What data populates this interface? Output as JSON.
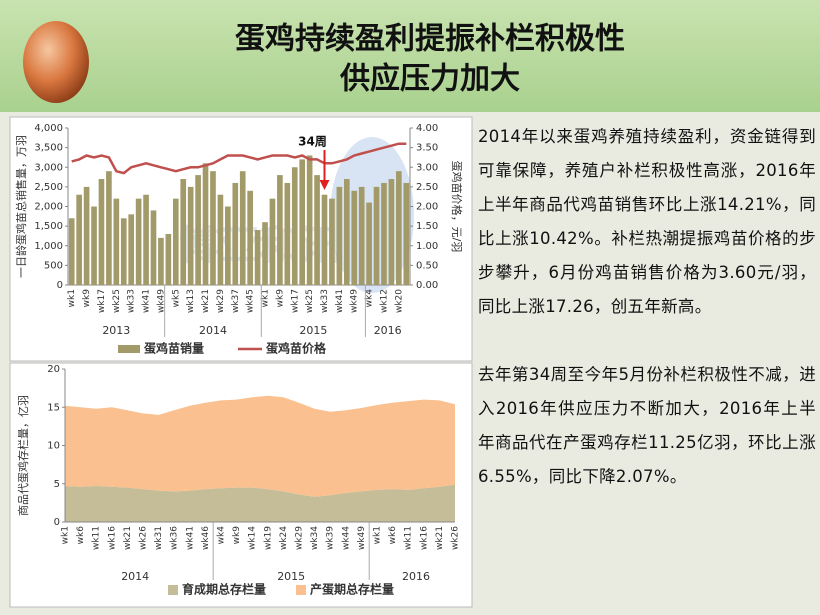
{
  "header": {
    "title_lines": [
      "蛋鸡持续盈利提振补栏积极性",
      "供应压力加大"
    ]
  },
  "text": {
    "paragraphs": [
      "2014年以来蛋鸡养殖持续盈利，资金链得到可靠保障，养殖户补栏积极性高涨，2016年上半年商品代鸡苗销售环比上涨14.21%，同比上涨10.42%。补栏热潮提振鸡苗价格的步步攀升，6月份鸡苗销售价格为3.60元/羽，同比上涨17.26，创五年新高。",
      "去年第34周至今年5月份补栏积极性不减，进入2016年供应压力不断加大，2016年上半年商品代在产蛋鸡存栏11.25亿羽，环比上涨6.55%，同比下降2.07%。"
    ]
  },
  "chart_data": [
    {
      "type": "combo",
      "y_label": "一日龄蛋鸡苗总销售量，万羽",
      "y2_label": "蛋鸡苗价格，元/羽",
      "watermark": "博亚和讯",
      "annotations": [
        {
          "text": "34周"
        }
      ],
      "groups": [
        "2013",
        "2014",
        "2015",
        "2016"
      ],
      "categories": [
        "wk1",
        null,
        "wk9",
        null,
        "wk17",
        null,
        "wk25",
        null,
        "wk33",
        null,
        "wk41",
        null,
        "wk49",
        null,
        "wk5",
        null,
        "wk13",
        null,
        "wk21",
        null,
        "wk29",
        null,
        "wk37",
        null,
        "wk45",
        null,
        "wk1",
        null,
        "wk9",
        null,
        "wk17",
        null,
        "wk25",
        null,
        "wk33",
        null,
        "wk41",
        null,
        "wk49",
        null,
        "wk4",
        null,
        "wk12",
        null,
        "wk20",
        null
      ],
      "series": [
        {
          "name": "蛋鸡苗销量",
          "type": "bar",
          "color": "#a39a6a",
          "values": [
            1700,
            2300,
            2500,
            2000,
            2700,
            2900,
            2200,
            1700,
            1800,
            2200,
            2300,
            1900,
            1200,
            1300,
            2200,
            2700,
            2500,
            2800,
            3100,
            2900,
            2300,
            2000,
            2600,
            2900,
            2400,
            1400,
            1600,
            2200,
            2800,
            2600,
            3000,
            3200,
            3300,
            2800,
            2300,
            2200,
            2500,
            2700,
            2400,
            2500,
            2100,
            2500,
            2600,
            2700,
            2900,
            2600
          ]
        },
        {
          "name": "蛋鸡苗价格",
          "type": "line",
          "axis": "y2",
          "color": "#c0504d",
          "values": [
            3.15,
            3.2,
            3.3,
            3.25,
            3.3,
            3.25,
            2.9,
            2.85,
            3.0,
            3.05,
            3.1,
            3.05,
            3.0,
            2.95,
            2.9,
            2.95,
            3.0,
            3.0,
            3.05,
            3.1,
            3.2,
            3.3,
            3.3,
            3.3,
            3.25,
            3.2,
            3.25,
            3.3,
            3.3,
            3.3,
            3.25,
            3.3,
            3.2,
            3.2,
            3.1,
            3.1,
            3.15,
            3.2,
            3.3,
            3.35,
            3.4,
            3.45,
            3.5,
            3.55,
            3.6,
            3.6
          ]
        }
      ],
      "ylim": [
        0,
        4000
      ],
      "yticks": [
        0,
        500,
        {
          "value": 1000,
          "label": "1,000"
        },
        {
          "value": 1500,
          "label": "1,500"
        },
        {
          "value": 2000,
          "label": "2,000"
        },
        {
          "value": 2500,
          "label": "2,500"
        },
        {
          "value": 3000,
          "label": "3,000"
        },
        {
          "value": 3500,
          "label": "3,500"
        },
        {
          "value": 4000,
          "label": "4,000"
        }
      ],
      "y2lim": [
        0,
        4
      ],
      "y2ticks": [
        {
          "value": 0,
          "label": "0.00"
        },
        {
          "value": 0.5,
          "label": "0.50"
        },
        {
          "value": 1,
          "label": "1.00"
        },
        {
          "value": 1.5,
          "label": "1.50"
        },
        {
          "value": 2,
          "label": "2.00"
        },
        {
          "value": 2.5,
          "label": "2.50"
        },
        {
          "value": 3,
          "label": "3.00"
        },
        {
          "value": 3.5,
          "label": "3.50"
        },
        {
          "value": 4,
          "label": "4.00"
        }
      ],
      "legend": "bottom"
    },
    {
      "type": "stacked_area",
      "y_label": "商品代蛋鸡存栏量，亿羽",
      "groups": [
        "2014",
        "2015",
        "2016"
      ],
      "categories": [
        "wk1",
        "wk6",
        "wk11",
        "wk16",
        "wk21",
        "wk26",
        "wk31",
        "wk36",
        "wk41",
        "wk46",
        "wk4",
        "wk9",
        "wk14",
        "wk19",
        "wk24",
        "wk29",
        "wk34",
        "wk39",
        "wk44",
        "wk49",
        "wk1",
        "wk6",
        "wk11",
        "wk16",
        "wk21",
        "wk26"
      ],
      "series": [
        {
          "name": "育成期总存栏量",
          "color": "#c4bd97",
          "values": [
            4.7,
            4.6,
            4.7,
            4.6,
            4.5,
            4.3,
            4.1,
            4.0,
            4.1,
            4.3,
            4.4,
            4.5,
            4.5,
            4.3,
            4.0,
            3.6,
            3.3,
            3.5,
            3.8,
            4.0,
            4.2,
            4.3,
            4.2,
            4.4,
            4.6,
            4.9
          ]
        },
        {
          "name": "产蛋期总存栏量",
          "color": "#fac08f",
          "values": [
            10.5,
            10.4,
            10.1,
            10.4,
            10.1,
            9.9,
            9.9,
            10.6,
            11.1,
            11.3,
            11.5,
            11.5,
            11.8,
            12.2,
            12.3,
            12.0,
            11.5,
            10.9,
            10.8,
            10.9,
            11.1,
            11.3,
            11.6,
            11.6,
            11.3,
            10.5
          ]
        }
      ],
      "ylim": [
        0,
        20
      ],
      "yticks": [
        0,
        5,
        10,
        15,
        20
      ],
      "legend": "bottom"
    }
  ]
}
